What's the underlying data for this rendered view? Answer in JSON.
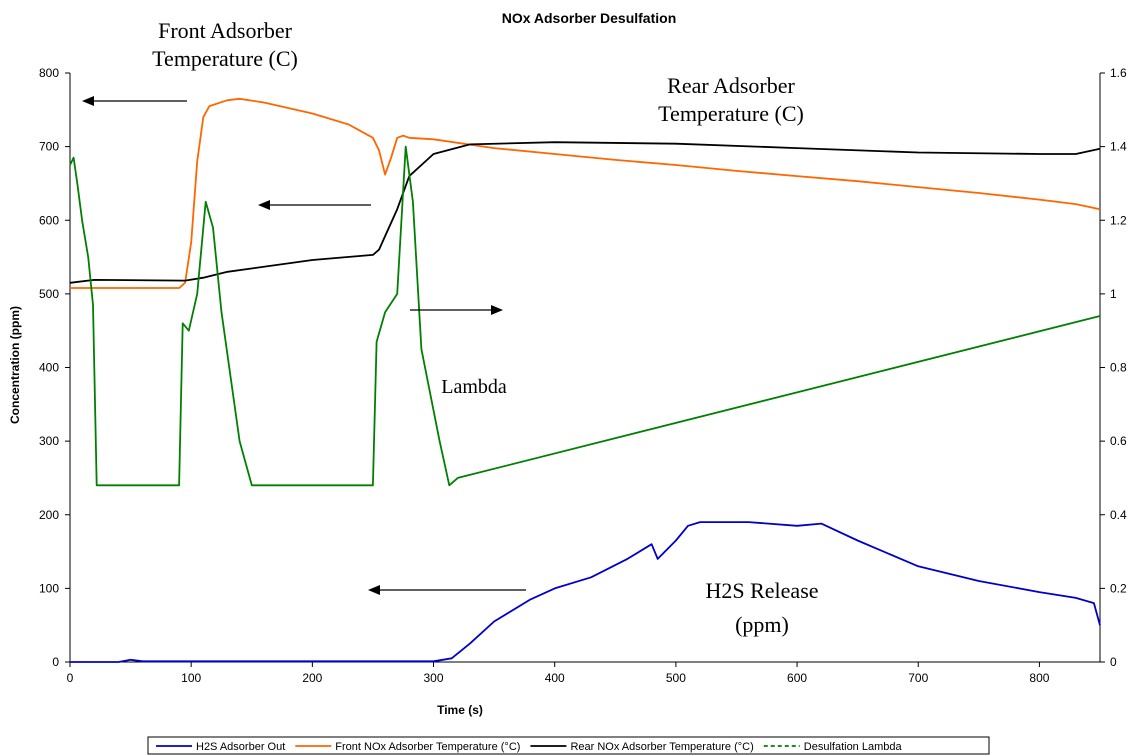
{
  "chart_data": {
    "type": "line",
    "title": "NOx Adsorber Desulfation",
    "xlabel": "Time (s)",
    "ylabel": "Concentration (ppm)",
    "xlim": [
      0,
      850
    ],
    "ylim": [
      0,
      800
    ],
    "y2lim": [
      0,
      1.6
    ],
    "x_ticks": [
      "0",
      "100",
      "200",
      "300",
      "400",
      "500",
      "600",
      "700",
      "800"
    ],
    "y_ticks": [
      "0",
      "100",
      "200",
      "300",
      "400",
      "500",
      "600",
      "700",
      "800"
    ],
    "y2_ticks": [
      "0",
      "0.2",
      "0.4",
      "0.6",
      "0.8",
      "1",
      "1.2",
      "1.4",
      "1.6"
    ],
    "grid": false,
    "legend_position": "bottom",
    "series": [
      {
        "name": "H2S Adsorber Out",
        "axis": "left",
        "color": "#0000cc",
        "dash": "solid",
        "x": [
          0,
          40,
          50,
          60,
          300,
          315,
          330,
          350,
          380,
          400,
          430,
          460,
          480,
          485,
          500,
          510,
          520,
          560,
          600,
          620,
          650,
          700,
          750,
          800,
          830,
          845,
          850
        ],
        "y": [
          0,
          0,
          3,
          1,
          1,
          5,
          25,
          55,
          85,
          100,
          115,
          140,
          160,
          140,
          165,
          185,
          190,
          190,
          185,
          188,
          165,
          130,
          110,
          95,
          87,
          80,
          50
        ]
      },
      {
        "name": "Front NOx Adsorber Temperature (°C)",
        "axis": "left",
        "color": "#ff6600",
        "dash": "solid",
        "x": [
          0,
          80,
          90,
          95,
          100,
          105,
          110,
          115,
          130,
          140,
          160,
          200,
          230,
          250,
          255,
          260,
          265,
          270,
          275,
          280,
          300,
          350,
          400,
          450,
          500,
          550,
          600,
          650,
          700,
          750,
          800,
          830,
          850
        ],
        "y": [
          508,
          508,
          508,
          515,
          570,
          680,
          740,
          755,
          763,
          765,
          760,
          745,
          730,
          712,
          695,
          662,
          685,
          712,
          715,
          712,
          710,
          698,
          690,
          682,
          675,
          667,
          660,
          653,
          645,
          637,
          628,
          622,
          615
        ]
      },
      {
        "name": "Rear NOx Adsorber Temperature (°C)",
        "axis": "left",
        "color": "#000000",
        "dash": "solid",
        "x": [
          0,
          20,
          95,
          110,
          130,
          200,
          250,
          255,
          270,
          280,
          300,
          330,
          400,
          500,
          600,
          700,
          800,
          830,
          850
        ],
        "y": [
          515,
          519,
          518,
          522,
          530,
          546,
          553,
          560,
          615,
          660,
          690,
          703,
          706,
          704,
          698,
          692,
          690,
          690,
          697
        ]
      },
      {
        "name": "Desulfation Lambda",
        "axis": "right",
        "color": "#008000",
        "dash": "dashed",
        "x": [
          0,
          3,
          6,
          10,
          15,
          19,
          22,
          90,
          93,
          98,
          105,
          112,
          118,
          125,
          140,
          150,
          155,
          250,
          253,
          260,
          270,
          277,
          283,
          290,
          305,
          313,
          320,
          850
        ],
        "y": [
          1.35,
          1.37,
          1.3,
          1.2,
          1.1,
          0.97,
          0.48,
          0.48,
          0.92,
          0.9,
          1.0,
          1.25,
          1.18,
          0.95,
          0.6,
          0.48,
          0.48,
          0.48,
          0.87,
          0.95,
          1.0,
          1.4,
          1.25,
          0.85,
          0.6,
          0.48,
          0.5,
          0.94
        ]
      }
    ],
    "annotations": [
      {
        "text_lines": [
          "Front Adsorber",
          "Temperature (C)"
        ]
      },
      {
        "text_lines": [
          "Rear Adsorber",
          "Temperature (C)"
        ]
      },
      {
        "text_lines": [
          "Lambda"
        ]
      },
      {
        "text_lines": [
          "H2S Release",
          "(ppm)"
        ]
      }
    ]
  }
}
